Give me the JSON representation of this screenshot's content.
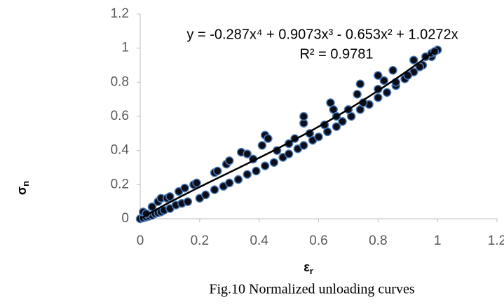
{
  "chart_data": {
    "type": "scatter",
    "caption": "Fig.10 Normalized unloading curves",
    "x_label": {
      "base": "ε",
      "subscript": "r"
    },
    "y_label": {
      "base": "σ",
      "subscript": "n"
    },
    "x": [
      0,
      0.01,
      0.02,
      0.03,
      0.04,
      0.05,
      0.06,
      0.07,
      0.08,
      0.1,
      0.12,
      0.14,
      0.16,
      0.2,
      0.22,
      0.25,
      0.28,
      0.3,
      0.33,
      0.36,
      0.39,
      0.42,
      0.45,
      0.48,
      0.5,
      0.53,
      0.55,
      0.58,
      0.6,
      0.63,
      0.66,
      0.68,
      0.71,
      0.74,
      0.77,
      0.8,
      0.83,
      0.86,
      0.89,
      0.92,
      0.95,
      0.98,
      1,
      0.01,
      0.02,
      0.04,
      0.06,
      0.07,
      0.09,
      0.1,
      0.13,
      0.15,
      0.18,
      0.19,
      0.25,
      0.26,
      0.29,
      0.3,
      0.34,
      0.36,
      0.38,
      0.41,
      0.42,
      0.43,
      0.46,
      0.5,
      0.52,
      0.55,
      0.55,
      0.57,
      0.62,
      0.64,
      0.65,
      0.66,
      0.7,
      0.73,
      0.74,
      0.75,
      0.8,
      0.8,
      0.82,
      0.85,
      0.86,
      0.9,
      0.92,
      0.94,
      0.96,
      0.98,
      0.99
    ],
    "series": [
      {
        "color": "#0d0d1a",
        "edge_color": "#4a7ebb",
        "values": [
          0,
          0.005,
          0.01,
          0.015,
          0.02,
          0.03,
          0.035,
          0.04,
          0.05,
          0.06,
          0.08,
          0.09,
          0.1,
          0.12,
          0.14,
          0.17,
          0.19,
          0.21,
          0.23,
          0.26,
          0.28,
          0.31,
          0.33,
          0.36,
          0.38,
          0.41,
          0.43,
          0.46,
          0.48,
          0.51,
          0.54,
          0.57,
          0.6,
          0.64,
          0.67,
          0.71,
          0.74,
          0.78,
          0.82,
          0.86,
          0.9,
          0.95,
          0.99,
          0.04,
          0.03,
          0.07,
          0.1,
          0.12,
          0.12,
          0.13,
          0.16,
          0.18,
          0.2,
          0.21,
          0.27,
          0.28,
          0.32,
          0.34,
          0.39,
          0.38,
          0.35,
          0.43,
          0.49,
          0.47,
          0.4,
          0.44,
          0.47,
          0.56,
          0.6,
          0.5,
          0.55,
          0.68,
          0.64,
          0.6,
          0.64,
          0.73,
          0.79,
          0.68,
          0.84,
          0.76,
          0.81,
          0.87,
          0.8,
          0.84,
          0.93,
          0.89,
          0.95,
          0.97,
          0.98
        ]
      }
    ],
    "trendline": {
      "type": "polynomial",
      "color": "#000000",
      "coefficients": [
        -0.287,
        0.9073,
        -0.653,
        1.0272
      ],
      "equation": "y = -0.287x⁴ + 0.9073x³ - 0.653x² + 1.0272x",
      "r2": 0.9781,
      "r2_label": "R² = 0.9781"
    },
    "xlim": [
      0,
      1.2
    ],
    "xticks": [
      0,
      0.2,
      0.4,
      0.6,
      0.8,
      1,
      1.2
    ],
    "ylim": [
      0,
      1.2
    ],
    "yticks": [
      0,
      0.2,
      0.4,
      0.6,
      0.8,
      1,
      1.2
    ],
    "grid": false
  }
}
